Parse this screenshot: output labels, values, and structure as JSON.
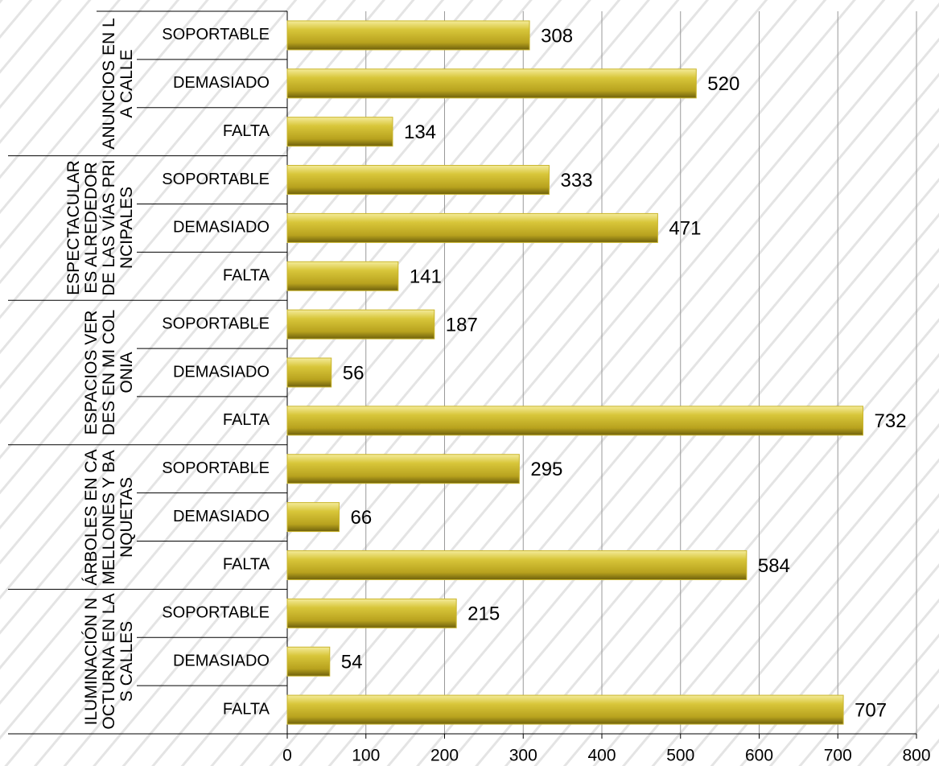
{
  "chart_data": {
    "type": "bar",
    "orientation": "horizontal",
    "color": "#c9b52c",
    "groups": [
      {
        "name": "ANUNCIOS EN LA CALLE",
        "categories": [
          "SOPORTABLE",
          "DEMASIADO",
          "FALTA"
        ],
        "values": [
          308,
          520,
          134
        ]
      },
      {
        "name": "ESPECTACULARES ALREDEDOR DE LAS VÍAS PRINCIPALES",
        "categories": [
          "SOPORTABLE",
          "DEMASIADO",
          "FALTA"
        ],
        "values": [
          333,
          471,
          141
        ]
      },
      {
        "name": "ESPACIOS VERDES EN MI COLONIA",
        "categories": [
          "SOPORTABLE",
          "DEMASIADO",
          "FALTA"
        ],
        "values": [
          187,
          56,
          732
        ]
      },
      {
        "name": "ÁRBOLES EN CAMELLONES Y BANQUETAS",
        "categories": [
          "SOPORTABLE",
          "DEMASIADO",
          "FALTA"
        ],
        "values": [
          295,
          66,
          584
        ]
      },
      {
        "name": "ILUMINACIÓN NOCTURNA EN LAS CALLES",
        "categories": [
          "SOPORTABLE",
          "DEMASIADO",
          "FALTA"
        ],
        "values": [
          215,
          54,
          707
        ]
      }
    ],
    "xlim": [
      0,
      800
    ],
    "xticks": [
      0,
      100,
      200,
      300,
      400,
      500,
      600,
      700,
      800
    ],
    "grid": true
  }
}
